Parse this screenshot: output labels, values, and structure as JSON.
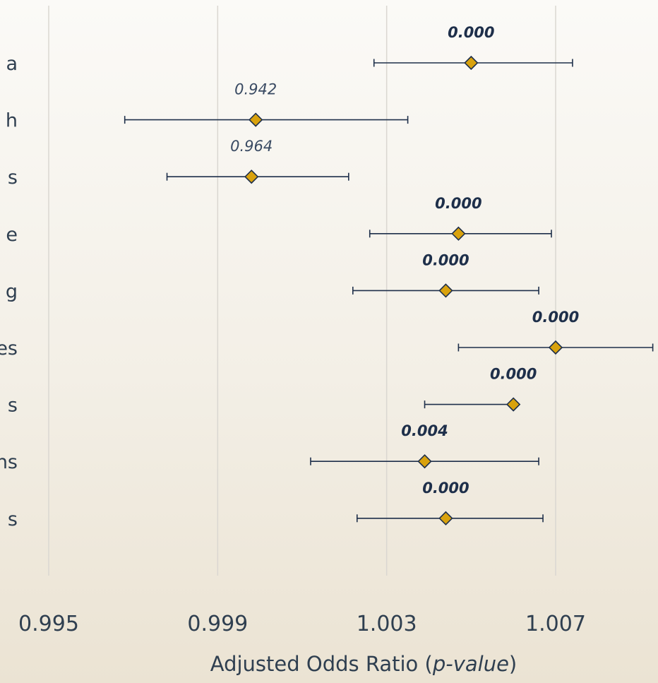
{
  "chart_data": {
    "type": "forest",
    "xlabel_prefix": "Adjusted Odds Ratio (",
    "xlabel_italic": "p-value",
    "xlabel_suffix": ")",
    "xlim": [
      0.995,
      1.009
    ],
    "xticks": [
      0.995,
      0.999,
      1.003,
      1.007
    ],
    "xtick_labels": [
      "0.995",
      "0.999",
      "1.003",
      "1.007"
    ],
    "categories": [
      "a",
      "h",
      "s",
      "e",
      "g",
      "es",
      "s",
      "ns",
      "s"
    ],
    "estimates": [
      1.005,
      0.9999,
      0.9998,
      1.0047,
      1.0044,
      1.007,
      1.006,
      1.0039,
      1.0044
    ],
    "ci_lower": [
      1.0027,
      0.9968,
      0.9978,
      1.0026,
      1.0022,
      1.0047,
      1.0039,
      1.0012,
      1.0023
    ],
    "ci_upper": [
      1.0074,
      1.0035,
      1.0021,
      1.0069,
      1.0066,
      1.0093,
      1.006,
      1.0066,
      1.0067
    ],
    "p_values": [
      "0.000",
      "0.942",
      "0.964",
      "0.000",
      "0.000",
      "0.000",
      "0.000",
      "0.004",
      "0.000"
    ],
    "significant": [
      true,
      false,
      false,
      true,
      true,
      true,
      true,
      true,
      true
    ],
    "grid": true,
    "colors": {
      "marker": "#d9a20d",
      "line": "#1e2f4a",
      "text": "#2f3f50"
    }
  }
}
